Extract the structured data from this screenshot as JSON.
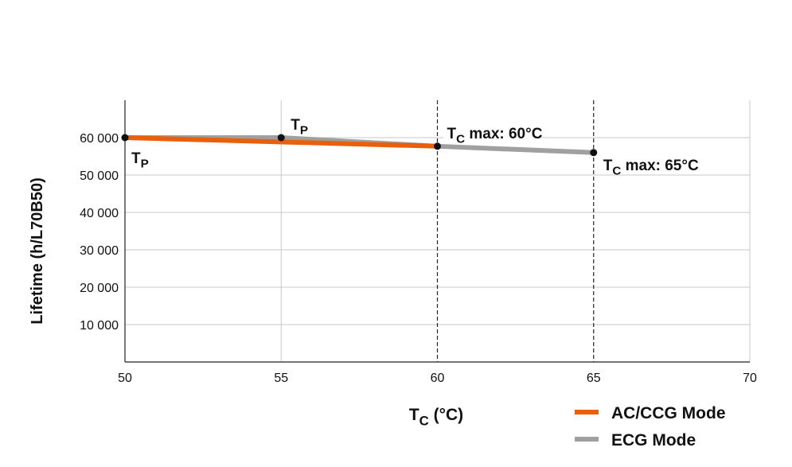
{
  "chart_data": {
    "type": "line",
    "title": "",
    "xlabel": {
      "main": "T",
      "sub": "C",
      "rest": " (°C)"
    },
    "ylabel": "Lifetime (h/L70B50)",
    "xlim": [
      50,
      70
    ],
    "ylim": [
      0,
      70000
    ],
    "x_ticks": [
      50,
      55,
      60,
      65,
      70
    ],
    "x_tick_labels": [
      "50",
      "55",
      "60",
      "65",
      "70"
    ],
    "y_ticks": [
      10000,
      20000,
      30000,
      40000,
      50000,
      60000
    ],
    "y_tick_labels": [
      "10 000",
      "20 000",
      "30 000",
      "40 000",
      "50 000",
      "60 000"
    ],
    "grid": true,
    "dashed_vlines": [
      60,
      65
    ],
    "legend_position": "bottom-right",
    "series": [
      {
        "name": "ECG Mode",
        "color": "#a0a0a0",
        "x": [
          50,
          55,
          60,
          65
        ],
        "y": [
          60000,
          60000,
          57700,
          56000
        ]
      },
      {
        "name": "AC/CCG Mode",
        "color": "#e8600c",
        "x": [
          50,
          60
        ],
        "y": [
          60000,
          57700
        ]
      }
    ],
    "points": [
      {
        "x": 50,
        "y": 60000
      },
      {
        "x": 55,
        "y": 60000
      },
      {
        "x": 60,
        "y": 57700
      },
      {
        "x": 65,
        "y": 56000
      }
    ],
    "annotations": [
      {
        "main": "T",
        "sub": "P",
        "rest": "",
        "x": 50,
        "y": 60000,
        "pos": "below"
      },
      {
        "main": "T",
        "sub": "P",
        "rest": "",
        "x": 55,
        "y": 60000,
        "pos": "above"
      },
      {
        "main": "T",
        "sub": "C",
        "rest": " max: 60°C",
        "x": 60,
        "y": 57700,
        "pos": "above"
      },
      {
        "main": "T",
        "sub": "C",
        "rest": " max: 65°C",
        "x": 65,
        "y": 56000,
        "pos": "below"
      }
    ]
  }
}
